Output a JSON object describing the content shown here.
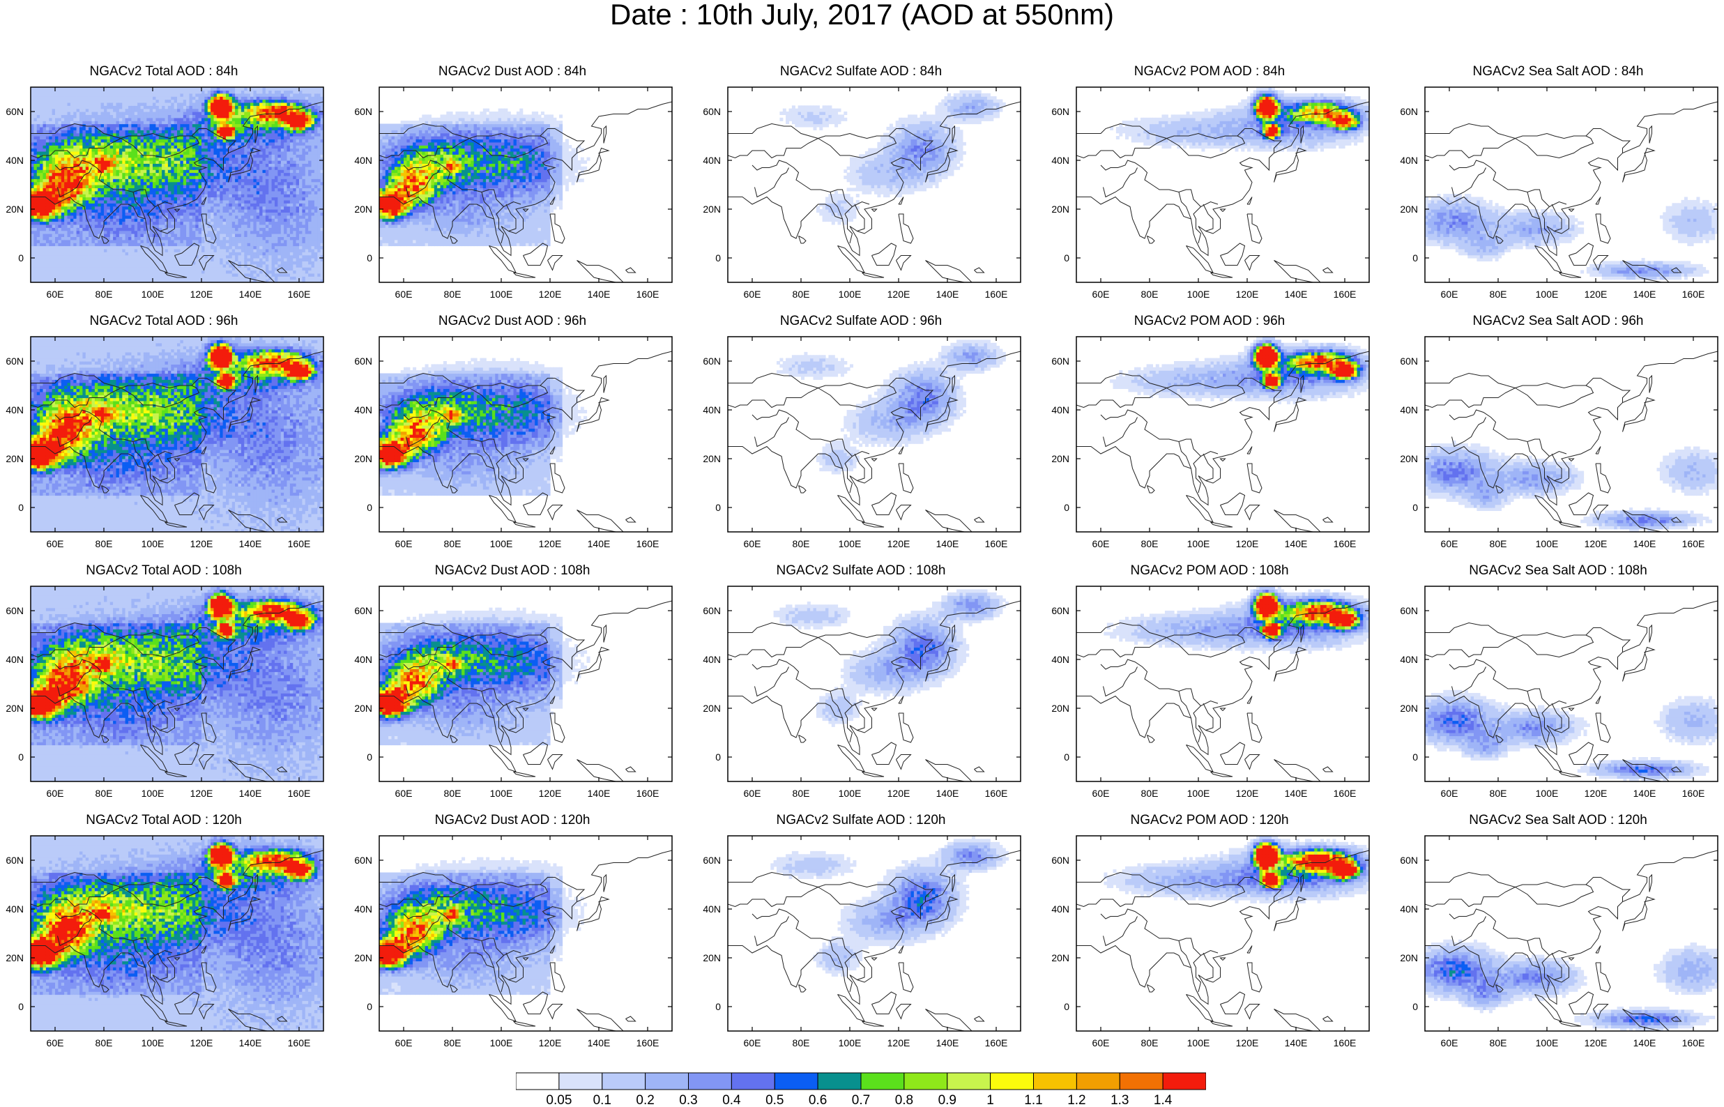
{
  "title": "Date : 10th July, 2017 (AOD at 550nm)",
  "rows": [
    "84h",
    "96h",
    "108h",
    "120h"
  ],
  "columns": [
    "Total",
    "Dust",
    "Sulfate",
    "POM",
    "Sea Salt"
  ],
  "panels": [
    [
      "NGACv2 Total AOD : 84h",
      "NGACv2 Dust AOD : 84h",
      "NGACv2 Sulfate AOD : 84h",
      "NGACv2 POM AOD : 84h",
      "NGACv2 Sea Salt AOD : 84h"
    ],
    [
      "NGACv2 Total AOD : 96h",
      "NGACv2 Dust AOD : 96h",
      "NGACv2 Sulfate AOD : 96h",
      "NGACv2 POM AOD : 96h",
      "NGACv2 Sea Salt AOD : 96h"
    ],
    [
      "NGACv2 Total AOD : 108h",
      "NGACv2 Dust AOD : 108h",
      "NGACv2 Sulfate AOD : 108h",
      "NGACv2 POM AOD : 108h",
      "NGACv2 Sea Salt AOD : 108h"
    ],
    [
      "NGACv2 Total AOD : 120h",
      "NGACv2 Dust AOD : 120h",
      "NGACv2 Sulfate AOD : 120h",
      "NGACv2 POM AOD : 120h",
      "NGACv2 Sea Salt  AOD : 120h"
    ]
  ],
  "map": {
    "lon_range": [
      50,
      170
    ],
    "lat_range": [
      -10,
      70
    ],
    "lon_ticks": [
      "60E",
      "80E",
      "100E",
      "120E",
      "140E",
      "160E"
    ],
    "lat_ticks": [
      "60N",
      "40N",
      "20N",
      "0"
    ]
  },
  "colorbar": {
    "colors": [
      "#ffffff",
      "#d9e2fb",
      "#bacbf9",
      "#9fb5f7",
      "#8296f4",
      "#6372ef",
      "#0b5ef3",
      "#08908e",
      "#5be01c",
      "#8fe81a",
      "#c8f44d",
      "#fbfb0c",
      "#f7c200",
      "#f29f01",
      "#f27103",
      "#f31c0c"
    ],
    "labels": [
      "0.05",
      "0.1",
      "0.2",
      "0.3",
      "0.4",
      "0.5",
      "0.6",
      "0.7",
      "0.8",
      "0.9",
      "1",
      "1.1",
      "1.2",
      "1.3",
      "1.4"
    ]
  }
}
